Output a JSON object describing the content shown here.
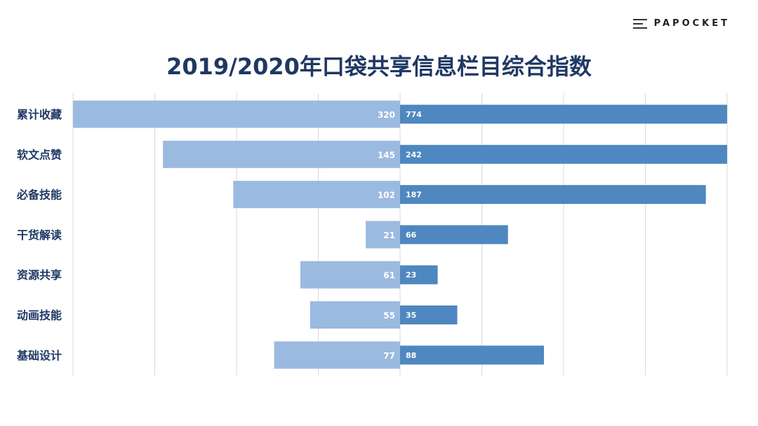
{
  "brand": {
    "name": "PAPOCKET",
    "icon": "hamburger-icon"
  },
  "chart_data": {
    "type": "bar",
    "title": "2019/2020年口袋共享信息栏目综合指数",
    "categories": [
      "累计收藏",
      "软文点赞",
      "必备技能",
      "干货解读",
      "资源共享",
      "动画技能",
      "基础设计"
    ],
    "series": [
      {
        "values": [
          320,
          145,
          102,
          21,
          61,
          55,
          77
        ],
        "color": "#9bbae0",
        "direction": "left"
      },
      {
        "values": [
          774,
          242,
          187,
          66,
          23,
          35,
          88
        ],
        "color": "#4f87c0",
        "direction": "right"
      }
    ],
    "left_xlim": [
      0,
      200
    ],
    "right_xlim": [
      0,
      200
    ],
    "grid": true,
    "legend": "none"
  }
}
